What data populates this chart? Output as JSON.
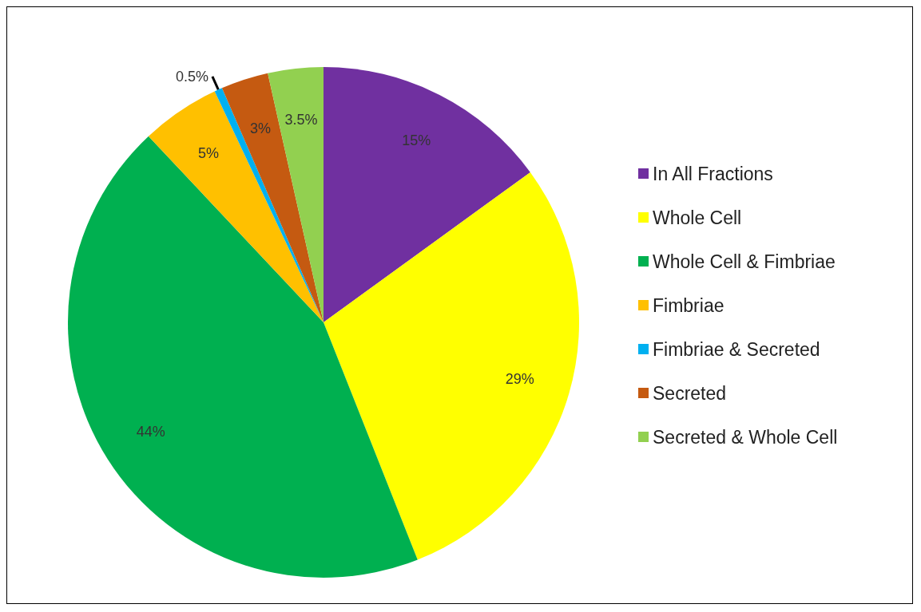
{
  "chart_data": {
    "type": "pie",
    "categories": [
      "In All Fractions",
      "Whole Cell",
      "Whole Cell & Fimbriae",
      "Fimbriae",
      "Fimbriae & Secreted",
      "Secreted",
      "Secreted & Whole Cell"
    ],
    "values": [
      15,
      29,
      44,
      5,
      0.5,
      3,
      3.5
    ],
    "colors": [
      "#7030a0",
      "#ffff00",
      "#00b050",
      "#ffc000",
      "#00b0f0",
      "#c55a11",
      "#92d050"
    ],
    "value_labels": [
      "15%",
      "29%",
      "44%",
      "5%",
      "0.5%",
      "3%",
      "3.5%"
    ],
    "legend": "right"
  }
}
